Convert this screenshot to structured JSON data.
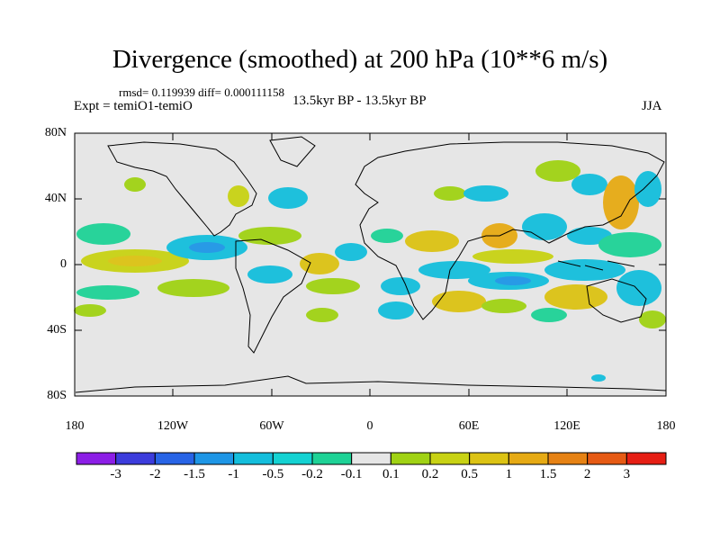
{
  "title": "Divergence (smoothed) at 200 hPa (10**6 m/s)",
  "stats": "rmsd= 0.119939 diff= 0.000111158",
  "experiment": "Expt = temiO1-temiO",
  "period": "13.5kyr BP - 13.5kyr BP",
  "season": "JJA",
  "lat_labels": [
    "80N",
    "40N",
    "0",
    "40S",
    "80S"
  ],
  "lon_labels": [
    "180",
    "120W",
    "60W",
    "0",
    "60E",
    "120E",
    "180"
  ],
  "colorbar": {
    "colors": [
      "#8c1ee6",
      "#3c3cdc",
      "#2864e6",
      "#1e96e6",
      "#14bedc",
      "#14d2d2",
      "#1ed296",
      "#e6e6e6",
      "#a0d214",
      "#c8d214",
      "#dcc314",
      "#e6aa14",
      "#e68214",
      "#e65a14",
      "#e61e14"
    ],
    "labels": [
      "-3",
      "-2",
      "-1.5",
      "-1",
      "-0.5",
      "-0.2",
      "-0.1",
      "0.1",
      "0.2",
      "0.5",
      "1",
      "1.5",
      "2",
      "3"
    ]
  },
  "colors": {
    "ocean_land": "#e6e6e6",
    "coast": "#000000"
  }
}
